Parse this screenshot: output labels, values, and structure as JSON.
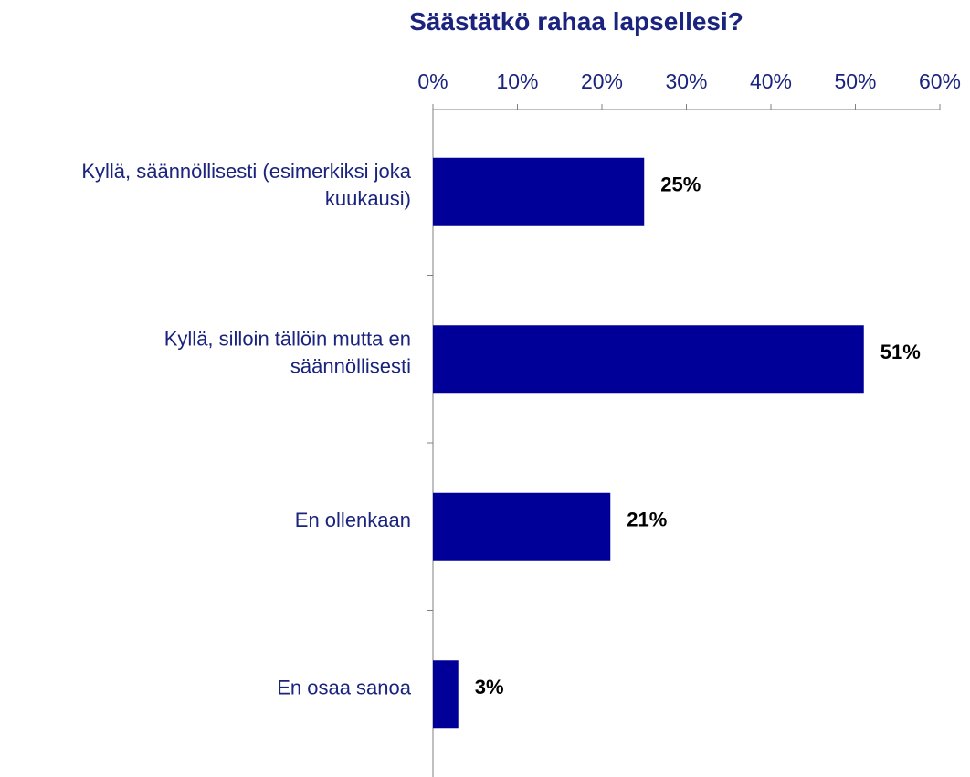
{
  "chart_data": {
    "type": "bar",
    "orientation": "horizontal",
    "title": "Säästätkö rahaa lapsellesi?",
    "categories": [
      [
        "Kyllä, säännöllisesti (esimerkiksi joka",
        "kuukausi)"
      ],
      [
        "Kyllä, silloin tällöin mutta en",
        "säännöllisesti"
      ],
      [
        "En ollenkaan"
      ],
      [
        "En osaa sanoa"
      ]
    ],
    "values": [
      25,
      51,
      21,
      3
    ],
    "value_labels": [
      "25%",
      "51%",
      "21%",
      "3%"
    ],
    "x_ticks": [
      "0%",
      "10%",
      "20%",
      "30%",
      "40%",
      "50%",
      "60%"
    ],
    "xlim": [
      0,
      60
    ],
    "x_axis_position": "top",
    "grid": false,
    "legend": "none",
    "colors": {
      "bar": "#000099",
      "text": "#1a237e",
      "axis": "#808080",
      "value_label": "#000000"
    }
  }
}
